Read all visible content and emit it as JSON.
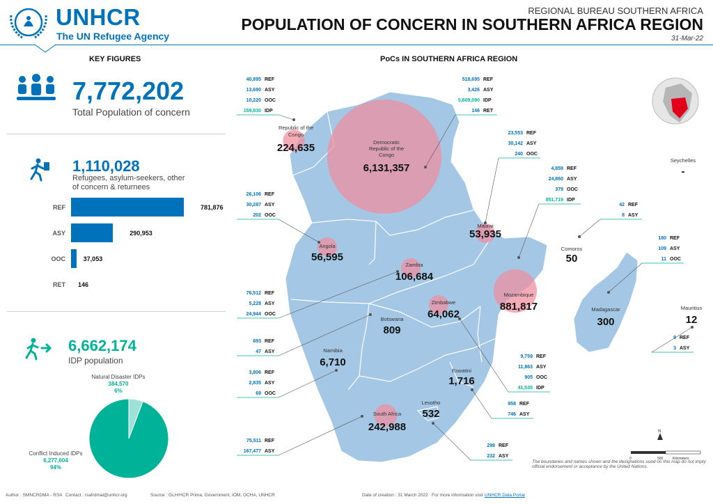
{
  "header": {
    "org_name": "UNHCR",
    "org_tagline": "The UN Refugee Agency",
    "bureau": "REGIONAL BUREAU SOUTHERN AFRICA",
    "title": "POPULATION OF CONCERN IN SOUTHERN AFRICA REGION",
    "date": "31-Mar-22"
  },
  "key_figures": {
    "heading": "KEY FIGURES",
    "total": {
      "value": "7,772,202",
      "label": "Total Population of concern"
    },
    "refugees": {
      "value": "1,110,028",
      "label_line1": "Refugees, asylum-seekers, other",
      "label_line2": "of concern & returnees"
    },
    "idp": {
      "value": "6,662,174",
      "label": "IDP population"
    }
  },
  "colors": {
    "blue": "#0072bc",
    "teal": "#00b398",
    "pink": "#f08e9c",
    "land": "#a3c7e4"
  },
  "chart_data": [
    {
      "type": "bar",
      "orientation": "horizontal",
      "categories": [
        "REF",
        "ASY",
        "OOC",
        "RET"
      ],
      "values": [
        781876,
        290953,
        37053,
        146
      ],
      "value_labels": [
        "781,876",
        "290,953",
        "37,053",
        "146"
      ]
    },
    {
      "type": "pie",
      "slices": [
        {
          "name": "Natural Disaster IDPs",
          "value": 384570,
          "value_label": "384,570",
          "pct": "6%"
        },
        {
          "name": "Conflict Induced IDPs",
          "value": 6277604,
          "value_label": "6,277,604",
          "pct": "94%"
        }
      ]
    }
  ],
  "map": {
    "heading": "PoCs IN SOUTHERN AFRICA REGION",
    "disclaimer": "The boundaries and names shown and the designations used on this map do not imply official endorsement or acceptance by the United Nations.",
    "scale_label": "Kilometers",
    "scale_zero": "0",
    "scale_max": "500",
    "north": "N",
    "countries": [
      {
        "id": "roc",
        "name_line1": "Republic of the",
        "name_line2": "Congo",
        "total": "224,635",
        "value": 224635
      },
      {
        "id": "drc",
        "name_line1": "Democratic",
        "name_line2": "Republic of the",
        "name_line3": "Congo",
        "total": "6,131,357",
        "value": 6131357
      },
      {
        "id": "malawi",
        "name": "Malawi",
        "total": "53,935",
        "value": 53935
      },
      {
        "id": "angola",
        "name": "Angola",
        "total": "56,595",
        "value": 56595
      },
      {
        "id": "zambia",
        "name": "Zambia",
        "total": "106,684",
        "value": 106684
      },
      {
        "id": "mozambique",
        "name": "Mozambique",
        "total": "881,817",
        "value": 881817
      },
      {
        "id": "zimbabwe",
        "name": "Zimbabwe",
        "total": "64,062",
        "value": 64062
      },
      {
        "id": "botswana",
        "name": "Botswana",
        "total": "809",
        "value": 809
      },
      {
        "id": "namibia",
        "name": "Namibia",
        "total": "6,710",
        "value": 6710
      },
      {
        "id": "eswatini",
        "name": "Eswatini",
        "total": "1,716",
        "value": 1716
      },
      {
        "id": "lesotho",
        "name": "Lesotho",
        "total": "532",
        "value": 532
      },
      {
        "id": "south_africa",
        "name": "South Africa",
        "total": "242,988",
        "value": 242988
      },
      {
        "id": "comoros",
        "name": "Comoros",
        "total": "50",
        "value": 50
      },
      {
        "id": "madagascar",
        "name": "Madagascar",
        "total": "300",
        "value": 300
      },
      {
        "id": "mauritius",
        "name": "Mauritius",
        "total": "12",
        "value": 12
      },
      {
        "id": "seychelles",
        "name": "Seychelles",
        "total": "-"
      }
    ],
    "stat_blocks": [
      {
        "id": "roc",
        "rows": [
          [
            "40,895",
            "REF"
          ],
          [
            "13,690",
            "ASY"
          ],
          [
            "10,220",
            "OOC"
          ],
          [
            "159,830",
            "IDP"
          ]
        ]
      },
      {
        "id": "drc",
        "rows": [
          [
            "518,695",
            "REF"
          ],
          [
            "3,426",
            "ASY"
          ],
          [
            "5,609,090",
            "IDP"
          ],
          [
            "146",
            "RET"
          ]
        ]
      },
      {
        "id": "malawi",
        "rows": [
          [
            "23,553",
            "REF"
          ],
          [
            "30,142",
            "ASY"
          ],
          [
            "240",
            "OOC"
          ]
        ]
      },
      {
        "id": "mozambique",
        "rows": [
          [
            "4,859",
            "REF"
          ],
          [
            "24,860",
            "ASY"
          ],
          [
            "379",
            "OOC"
          ],
          [
            "851,719",
            "IDP"
          ]
        ]
      },
      {
        "id": "comoros",
        "rows": [
          [
            "42",
            "REF"
          ],
          [
            "8",
            "ASY"
          ]
        ]
      },
      {
        "id": "madagascar",
        "rows": [
          [
            "180",
            "REF"
          ],
          [
            "109",
            "ASY"
          ],
          [
            "11",
            "OOC"
          ]
        ]
      },
      {
        "id": "angola",
        "rows": [
          [
            "26,106",
            "REF"
          ],
          [
            "30,287",
            "ASY"
          ],
          [
            "202",
            "OOC"
          ]
        ]
      },
      {
        "id": "zambia",
        "rows": [
          [
            "76,512",
            "REF"
          ],
          [
            "5,228",
            "ASY"
          ],
          [
            "24,944",
            "OOC"
          ]
        ]
      },
      {
        "id": "botswana",
        "rows": [
          [
            "693",
            "REF"
          ],
          [
            "47",
            "ASY"
          ]
        ]
      },
      {
        "id": "namibia",
        "rows": [
          [
            "3,806",
            "REF"
          ],
          [
            "2,835",
            "ASY"
          ],
          [
            "69",
            "OOC"
          ]
        ]
      },
      {
        "id": "zimbabwe",
        "rows": [
          [
            "9,759",
            "REF"
          ],
          [
            "11,863",
            "ASY"
          ],
          [
            "905",
            "OOC"
          ],
          [
            "41,535",
            "IDP"
          ]
        ]
      },
      {
        "id": "eswatini",
        "rows": [
          [
            "958",
            "REF"
          ],
          [
            "746",
            "ASY"
          ]
        ]
      },
      {
        "id": "south_africa",
        "rows": [
          [
            "75,511",
            "REF"
          ],
          [
            "167,477",
            "ASY"
          ]
        ]
      },
      {
        "id": "lesotho",
        "rows": [
          [
            "298",
            "REF"
          ],
          [
            "232",
            "ASY"
          ]
        ]
      },
      {
        "id": "mauritius",
        "rows": [
          [
            "9",
            "REF"
          ],
          [
            "3",
            "ASY"
          ]
        ]
      }
    ]
  },
  "footer": {
    "author": "Author : SMNCRDMA - RSA",
    "contact": "Contact : rsafrdmal@unhcr.org",
    "source": "Source : GLH/HCR Prima, Government, IOM, OCHA, UNHCR",
    "creation": "Date of  creation : 31 March 2022",
    "more_info": "For more information visit",
    "link": "UNHCR Data Portal"
  }
}
